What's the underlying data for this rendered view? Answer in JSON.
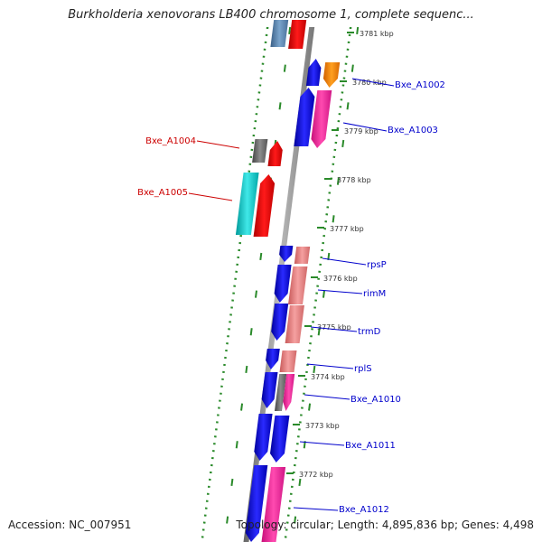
{
  "title": "Burkholderia xenovorans LB400 chromosome 1, complete sequenc...",
  "footer": {
    "accession": "Accession: NC_007951",
    "topology": "Topology: circular; Length: 4,895,836 bp; Genes: 4,498"
  },
  "colors": {
    "backbone": "#8a8a8a",
    "tick_dots": "#2a8a2a",
    "left_label": "#cc0000",
    "right_label": "#0000cc"
  },
  "ruler": [
    {
      "label": "3781 kbp"
    },
    {
      "label": "3780 kbp"
    },
    {
      "label": "3779 kbp"
    },
    {
      "label": "3778 kbp"
    },
    {
      "label": "3777 kbp"
    },
    {
      "label": "3776 kbp"
    },
    {
      "label": "3775 kbp"
    },
    {
      "label": "3774 kbp"
    },
    {
      "label": "3773 kbp"
    },
    {
      "label": "3772 kbp"
    }
  ],
  "left_genes": [
    {
      "name": "Bxe_A1004"
    },
    {
      "name": "Bxe_A1005"
    }
  ],
  "right_genes": [
    {
      "name": "Bxe_A1002"
    },
    {
      "name": "Bxe_A1003"
    },
    {
      "name": "rpsP"
    },
    {
      "name": "rimM"
    },
    {
      "name": "trmD"
    },
    {
      "name": "rplS"
    },
    {
      "name": "Bxe_A1010"
    },
    {
      "name": "Bxe_A1011"
    },
    {
      "name": "Bxe_A1012"
    }
  ]
}
